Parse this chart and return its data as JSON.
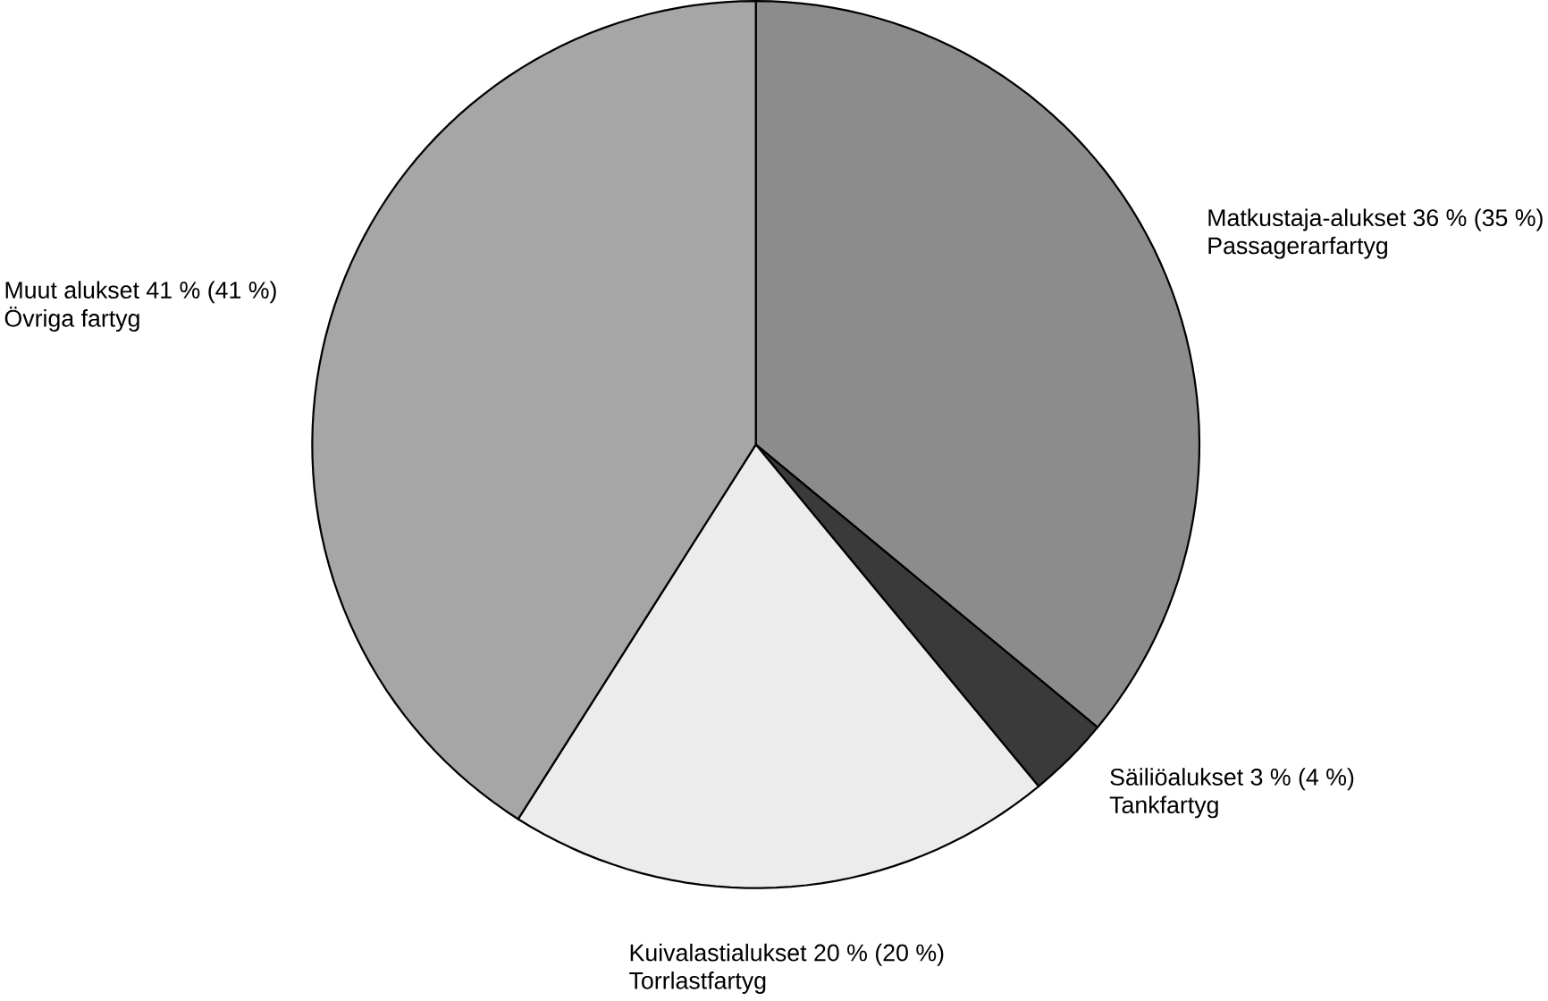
{
  "chart_data": {
    "type": "pie",
    "categories": [
      "Matkustaja-alukset 36 % (35 %)",
      "Säiliöalukset 3 % (4 %)",
      "Kuivalastialukset 20 % (20 %)",
      "Muut alukset 41 % (41 %)"
    ],
    "values": [
      36,
      3,
      20,
      41
    ],
    "colors": [
      "#8c8c8c",
      "#3a3a3a",
      "#ececec",
      "#a6a6a6"
    ],
    "annotations": [
      "Passagerarfartyg",
      "Tankfartyg",
      "Torrlastfartyg",
      "Övriga fartyg"
    ]
  }
}
